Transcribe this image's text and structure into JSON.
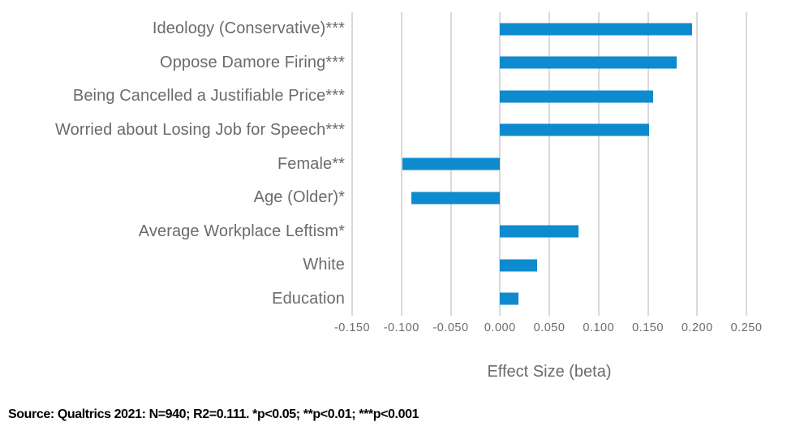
{
  "chart_data": {
    "type": "bar",
    "orientation": "horizontal",
    "categories": [
      "Ideology (Conservative)***",
      "Oppose Damore Firing***",
      "Being Cancelled a Justifiable Price***",
      "Worried about Losing Job for Speech***",
      "Female**",
      "Age (Older)*",
      "Average Workplace Leftism*",
      "White",
      "Education"
    ],
    "values": [
      0.195,
      0.179,
      0.155,
      0.151,
      -0.099,
      -0.09,
      0.08,
      0.038,
      0.019
    ],
    "title": "",
    "xlabel": "Effect Size (beta)",
    "ylabel": "",
    "xlim": [
      -0.15,
      0.25
    ],
    "x_ticks": [
      -0.15,
      -0.1,
      -0.05,
      0.0,
      0.05,
      0.1,
      0.15,
      0.2,
      0.25
    ],
    "x_tick_labels": [
      "-0.150",
      "-0.100",
      "-0.050",
      "0.000",
      "0.050",
      "0.100",
      "0.150",
      "0.200",
      "0.250"
    ],
    "grid": true,
    "legend": false,
    "bar_color": "#0d8bce",
    "gridline_color": "#d9d9d9",
    "text_color": "#6b6b6b"
  },
  "source_note": "Source: Qualtrics 2021: N=940; R2=0.111. *p<0.05; **p<0.01; ***p<0.001"
}
